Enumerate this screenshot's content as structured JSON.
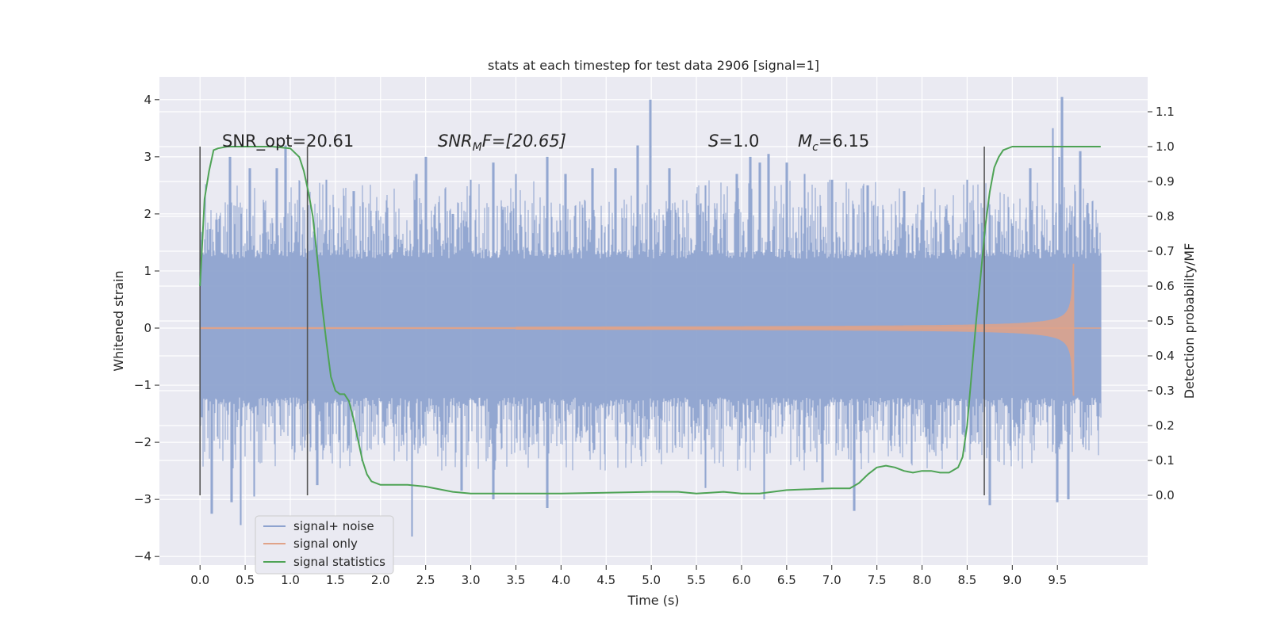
{
  "chart_data": {
    "type": "line",
    "title": "stats at each timestep for test data 2906 [signal=1]",
    "xlabel": "Time (s)",
    "ylabel": "Whitened strain",
    "ylabel_right": "Detection probability/MF",
    "xlim": [
      -0.45,
      10.5
    ],
    "ylim": [
      -4.15,
      4.4
    ],
    "ylim_right": [
      -0.2,
      1.2
    ],
    "x_ticks": [
      "0.0",
      "0.5",
      "1.0",
      "1.5",
      "2.0",
      "2.5",
      "3.0",
      "3.5",
      "4.0",
      "4.5",
      "5.0",
      "5.5",
      "6.0",
      "6.5",
      "7.0",
      "7.5",
      "8.0",
      "8.5",
      "9.0",
      "9.5"
    ],
    "y_ticks": [
      4,
      3,
      2,
      1,
      0,
      -1,
      -2,
      -3,
      -4
    ],
    "y_tick_labels": [
      "4",
      "3",
      "2",
      "1",
      "0",
      "−1",
      "−2",
      "−3",
      "−4"
    ],
    "y_right_ticks": [
      "1.1",
      "1.0",
      "0.9",
      "0.8",
      "0.7",
      "0.6",
      "0.5",
      "0.4",
      "0.3",
      "0.2",
      "0.1",
      "0.0"
    ],
    "grid": true,
    "legend_position": "lower-left",
    "annotations": {
      "snr_opt": "SNR_opt=20.61",
      "snr_mf_symbol": "SNR",
      "snr_mf_sub": "M",
      "snr_mf_tail": "F=[20.65]",
      "s_symbol": "S",
      "s_value": "=1.0",
      "mc_symbol": "M",
      "mc_sub": "c",
      "mc_value": "=6.15"
    },
    "vertical_markers": [
      0.0,
      1.19,
      8.69
    ],
    "series": [
      {
        "name": "signal+ noise",
        "color": "#8ea3cf",
        "x_range": [
          0.0,
          9.98
        ],
        "core_amplitude": 1.35,
        "spikes": [
          [
            0.18,
            1.9
          ],
          [
            0.33,
            3.0
          ],
          [
            0.55,
            2.8
          ],
          [
            0.85,
            2.8
          ],
          [
            0.95,
            3.2
          ],
          [
            1.4,
            2.6
          ],
          [
            1.7,
            2.4
          ],
          [
            2.4,
            2.7
          ],
          [
            2.5,
            3.0
          ],
          [
            2.8,
            2.0
          ],
          [
            3.0,
            2.6
          ],
          [
            3.25,
            2.9
          ],
          [
            3.5,
            2.7
          ],
          [
            3.85,
            3.0
          ],
          [
            4.05,
            2.7
          ],
          [
            4.35,
            2.8
          ],
          [
            4.6,
            2.8
          ],
          [
            4.85,
            3.2
          ],
          [
            4.99,
            4.0
          ],
          [
            5.2,
            2.8
          ],
          [
            5.6,
            2.5
          ],
          [
            5.95,
            2.7
          ],
          [
            6.1,
            3.0
          ],
          [
            6.2,
            2.9
          ],
          [
            6.3,
            3.05
          ],
          [
            6.5,
            2.9
          ],
          [
            6.7,
            2.7
          ],
          [
            7.0,
            2.6
          ],
          [
            7.4,
            2.5
          ],
          [
            7.8,
            2.4
          ],
          [
            8.0,
            2.2
          ],
          [
            8.5,
            2.6
          ],
          [
            9.2,
            2.8
          ],
          [
            9.45,
            3.5
          ],
          [
            9.52,
            3.0
          ],
          [
            9.55,
            4.05
          ],
          [
            9.75,
            3.1
          ],
          [
            0.13,
            -3.25
          ],
          [
            0.35,
            -3.05
          ],
          [
            0.45,
            -3.45
          ],
          [
            0.6,
            -2.95
          ],
          [
            1.3,
            -2.75
          ],
          [
            2.35,
            -3.65
          ],
          [
            2.9,
            -2.85
          ],
          [
            3.25,
            -3.0
          ],
          [
            3.85,
            -3.15
          ],
          [
            5.6,
            -2.8
          ],
          [
            6.25,
            -3.0
          ],
          [
            6.9,
            -2.7
          ],
          [
            7.25,
            -3.2
          ],
          [
            8.75,
            -3.1
          ],
          [
            9.5,
            -3.05
          ],
          [
            9.62,
            -3.0
          ]
        ]
      },
      {
        "name": "signal only",
        "color": "#e0a389",
        "chirp_start": 4.5,
        "merger_time": 9.68,
        "peak_amplitude": 1.6
      },
      {
        "name": "signal statistics",
        "color": "#4ea355",
        "axis": "right",
        "x": [
          0.0,
          0.05,
          0.1,
          0.15,
          0.2,
          0.3,
          0.5,
          0.8,
          1.0,
          1.1,
          1.15,
          1.2,
          1.25,
          1.3,
          1.35,
          1.4,
          1.45,
          1.5,
          1.55,
          1.6,
          1.65,
          1.7,
          1.75,
          1.8,
          1.85,
          1.9,
          2.0,
          2.1,
          2.3,
          2.5,
          2.8,
          3.0,
          4.0,
          5.0,
          5.3,
          5.5,
          5.8,
          6.0,
          6.2,
          6.5,
          7.0,
          7.2,
          7.3,
          7.4,
          7.5,
          7.6,
          7.7,
          7.8,
          7.9,
          8.0,
          8.1,
          8.2,
          8.3,
          8.4,
          8.45,
          8.5,
          8.55,
          8.6,
          8.65,
          8.7,
          8.75,
          8.8,
          8.85,
          8.9,
          9.0,
          9.5,
          9.98
        ],
        "y": [
          0.6,
          0.85,
          0.93,
          0.99,
          0.995,
          1.0,
          1.0,
          1.0,
          0.995,
          0.97,
          0.93,
          0.87,
          0.8,
          0.68,
          0.55,
          0.44,
          0.34,
          0.3,
          0.29,
          0.29,
          0.27,
          0.22,
          0.16,
          0.1,
          0.06,
          0.04,
          0.03,
          0.03,
          0.03,
          0.025,
          0.01,
          0.005,
          0.005,
          0.01,
          0.01,
          0.005,
          0.01,
          0.005,
          0.005,
          0.015,
          0.02,
          0.02,
          0.035,
          0.06,
          0.08,
          0.085,
          0.08,
          0.07,
          0.065,
          0.07,
          0.07,
          0.065,
          0.065,
          0.08,
          0.11,
          0.2,
          0.35,
          0.5,
          0.63,
          0.77,
          0.87,
          0.94,
          0.97,
          0.99,
          1.0,
          1.0,
          1.0
        ]
      }
    ]
  }
}
